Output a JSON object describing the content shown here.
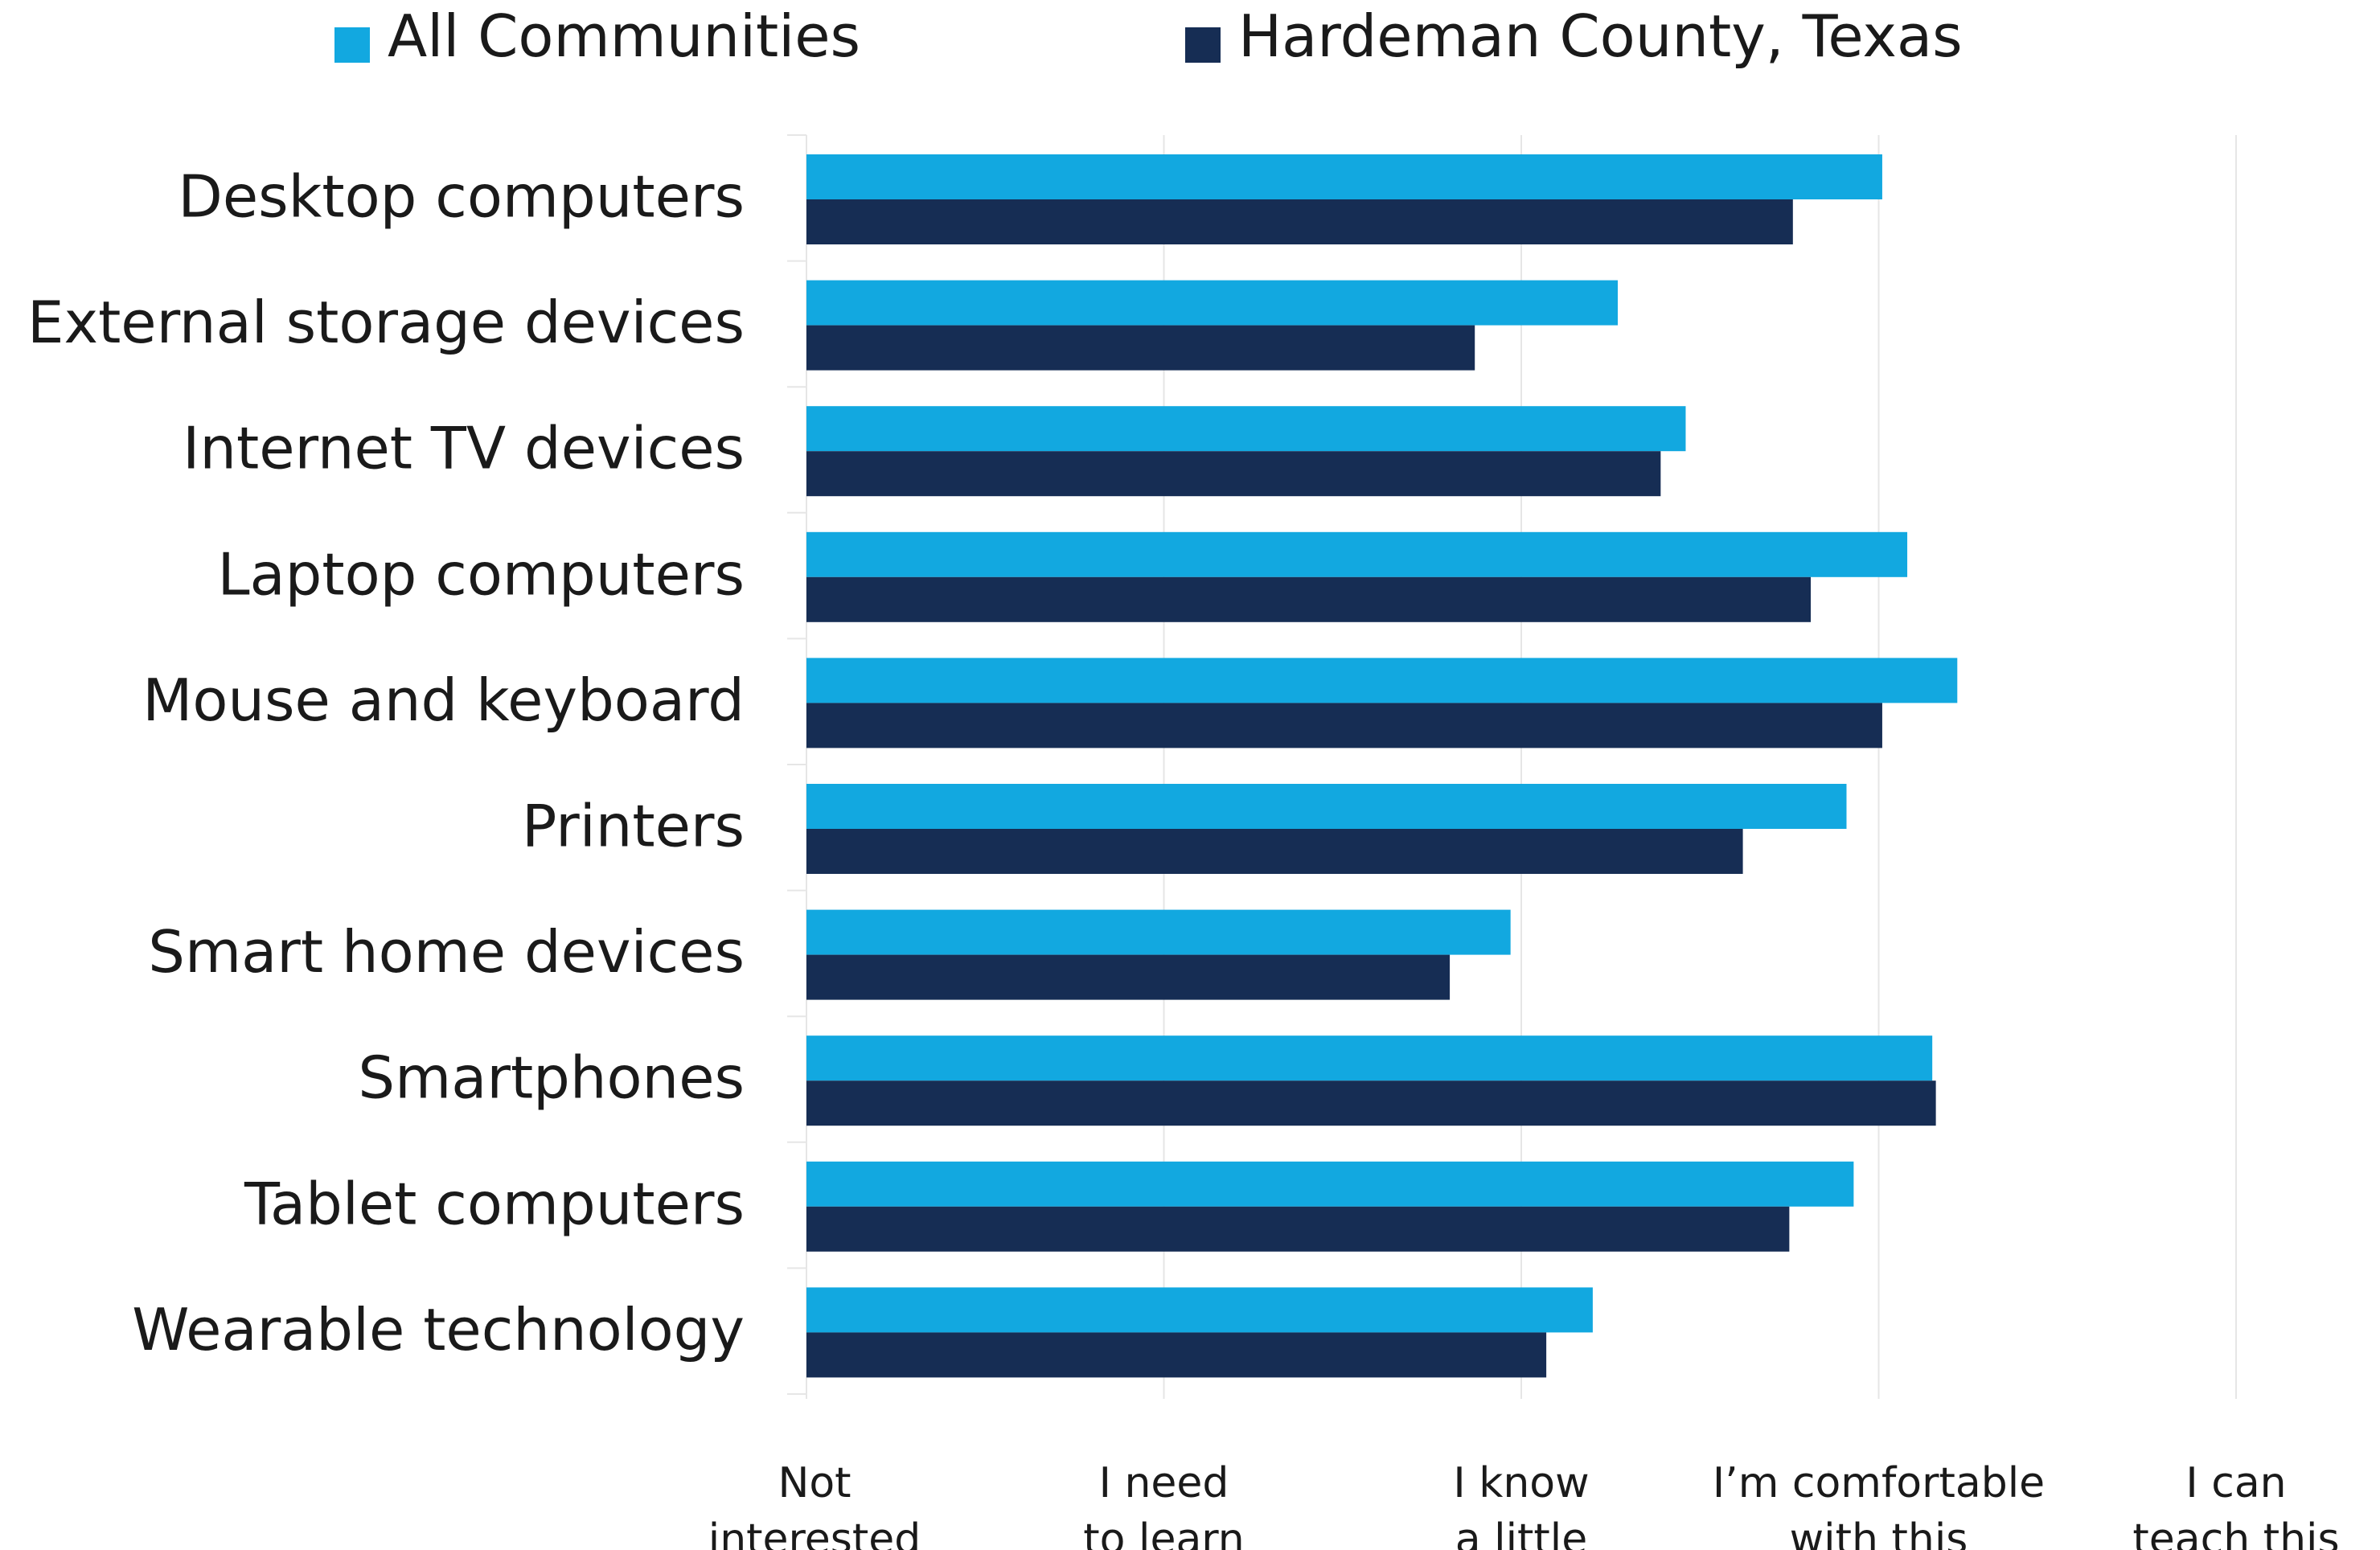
{
  "chart_data": {
    "type": "bar",
    "orientation": "horizontal",
    "title": "",
    "xlabel": "",
    "ylabel": "",
    "legend": {
      "placement": "top"
    },
    "grid": true,
    "xlim": [
      1,
      5
    ],
    "x_ticks": [
      {
        "value": 1,
        "label": [
          "Not",
          "interested"
        ]
      },
      {
        "value": 2,
        "label": [
          "I need",
          "to learn"
        ]
      },
      {
        "value": 3,
        "label": [
          "I know",
          "a little"
        ]
      },
      {
        "value": 4,
        "label": [
          "I’m comfortable",
          "with this"
        ]
      },
      {
        "value": 5,
        "label": [
          "I can",
          "teach this"
        ]
      }
    ],
    "categories": [
      "Desktop computers",
      "External storage devices",
      "Internet TV devices",
      "Laptop computers",
      "Mouse and keyboard",
      "Printers",
      "Smart home devices",
      "Smartphones",
      "Tablet computers",
      "Wearable technology"
    ],
    "series": [
      {
        "name": "All Communities",
        "color": "#12a8e0",
        "values": [
          4.01,
          3.27,
          3.46,
          4.08,
          4.22,
          3.91,
          2.97,
          4.15,
          3.93,
          3.2
        ]
      },
      {
        "name": "Hardeman County, Texas",
        "color": "#162d54",
        "values": [
          3.76,
          2.87,
          3.39,
          3.81,
          4.01,
          3.62,
          2.8,
          4.16,
          3.75,
          3.07
        ]
      }
    ]
  }
}
